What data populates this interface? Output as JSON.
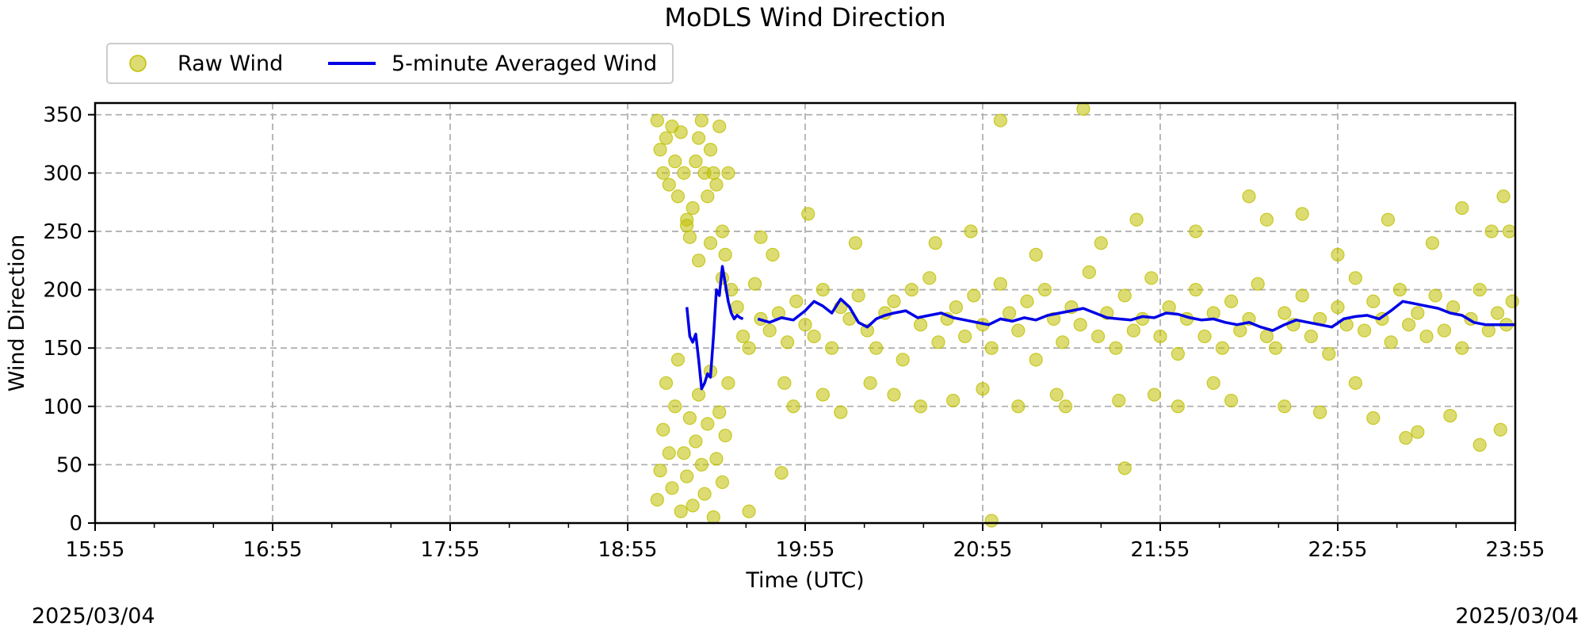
{
  "chart_data": {
    "type": "scatter",
    "title": "MoDLS Wind Direction",
    "xlabel": "Time (UTC)",
    "ylabel": "Wind Direction",
    "x_ticks": [
      "15:55",
      "16:55",
      "17:55",
      "18:55",
      "19:55",
      "20:55",
      "21:55",
      "22:55",
      "23:55"
    ],
    "x_range_minutes": [
      0,
      480
    ],
    "ylim": [
      0,
      360
    ],
    "y_ticks": [
      0,
      50,
      100,
      150,
      200,
      250,
      300,
      350
    ],
    "grid": true,
    "legend_position": "top-left",
    "date_left": "2025/03/04",
    "date_right": "2025/03/04",
    "series": [
      {
        "name": "Raw Wind",
        "kind": "scatter",
        "color": "#bfbf00",
        "points": [
          [
            190,
            345
          ],
          [
            191,
            320
          ],
          [
            192,
            300
          ],
          [
            193,
            330
          ],
          [
            194,
            290
          ],
          [
            195,
            340
          ],
          [
            196,
            310
          ],
          [
            197,
            280
          ],
          [
            198,
            335
          ],
          [
            199,
            300
          ],
          [
            200,
            260
          ],
          [
            201,
            245
          ],
          [
            202,
            270
          ],
          [
            203,
            310
          ],
          [
            204,
            330
          ],
          [
            205,
            345
          ],
          [
            206,
            300
          ],
          [
            207,
            280
          ],
          [
            208,
            320
          ],
          [
            209,
            300
          ],
          [
            210,
            290
          ],
          [
            211,
            340
          ],
          [
            212,
            250
          ],
          [
            213,
            230
          ],
          [
            214,
            300
          ],
          [
            190,
            20
          ],
          [
            191,
            45
          ],
          [
            192,
            80
          ],
          [
            193,
            120
          ],
          [
            194,
            60
          ],
          [
            195,
            30
          ],
          [
            196,
            100
          ],
          [
            197,
            140
          ],
          [
            198,
            10
          ],
          [
            199,
            60
          ],
          [
            200,
            40
          ],
          [
            201,
            90
          ],
          [
            202,
            15
          ],
          [
            203,
            70
          ],
          [
            204,
            110
          ],
          [
            205,
            50
          ],
          [
            206,
            25
          ],
          [
            207,
            85
          ],
          [
            208,
            130
          ],
          [
            209,
            5
          ],
          [
            210,
            55
          ],
          [
            211,
            95
          ],
          [
            212,
            35
          ],
          [
            213,
            75
          ],
          [
            214,
            120
          ],
          [
            200,
            255
          ],
          [
            204,
            225
          ],
          [
            208,
            240
          ],
          [
            212,
            210
          ],
          [
            215,
            200
          ],
          [
            217,
            185
          ],
          [
            219,
            160
          ],
          [
            221,
            150
          ],
          [
            223,
            205
          ],
          [
            225,
            175
          ],
          [
            228,
            165
          ],
          [
            231,
            180
          ],
          [
            234,
            155
          ],
          [
            237,
            190
          ],
          [
            240,
            170
          ],
          [
            243,
            160
          ],
          [
            246,
            200
          ],
          [
            249,
            150
          ],
          [
            252,
            185
          ],
          [
            255,
            175
          ],
          [
            258,
            195
          ],
          [
            261,
            165
          ],
          [
            264,
            150
          ],
          [
            267,
            180
          ],
          [
            270,
            190
          ],
          [
            273,
            140
          ],
          [
            276,
            200
          ],
          [
            279,
            170
          ],
          [
            282,
            210
          ],
          [
            285,
            155
          ],
          [
            288,
            175
          ],
          [
            291,
            185
          ],
          [
            294,
            160
          ],
          [
            297,
            195
          ],
          [
            300,
            170
          ],
          [
            303,
            150
          ],
          [
            306,
            205
          ],
          [
            309,
            180
          ],
          [
            312,
            165
          ],
          [
            315,
            190
          ],
          [
            318,
            140
          ],
          [
            321,
            200
          ],
          [
            324,
            175
          ],
          [
            327,
            155
          ],
          [
            330,
            185
          ],
          [
            333,
            170
          ],
          [
            336,
            215
          ],
          [
            339,
            160
          ],
          [
            342,
            180
          ],
          [
            345,
            150
          ],
          [
            348,
            195
          ],
          [
            351,
            165
          ],
          [
            354,
            175
          ],
          [
            357,
            210
          ],
          [
            360,
            160
          ],
          [
            363,
            185
          ],
          [
            366,
            145
          ],
          [
            369,
            175
          ],
          [
            372,
            200
          ],
          [
            375,
            160
          ],
          [
            378,
            180
          ],
          [
            381,
            150
          ],
          [
            384,
            190
          ],
          [
            387,
            165
          ],
          [
            390,
            175
          ],
          [
            393,
            205
          ],
          [
            396,
            160
          ],
          [
            399,
            150
          ],
          [
            402,
            180
          ],
          [
            405,
            170
          ],
          [
            408,
            195
          ],
          [
            411,
            160
          ],
          [
            414,
            175
          ],
          [
            417,
            145
          ],
          [
            420,
            185
          ],
          [
            423,
            170
          ],
          [
            426,
            210
          ],
          [
            429,
            165
          ],
          [
            432,
            190
          ],
          [
            435,
            175
          ],
          [
            438,
            155
          ],
          [
            441,
            200
          ],
          [
            444,
            170
          ],
          [
            447,
            180
          ],
          [
            450,
            160
          ],
          [
            453,
            195
          ],
          [
            456,
            165
          ],
          [
            459,
            185
          ],
          [
            462,
            150
          ],
          [
            465,
            175
          ],
          [
            468,
            200
          ],
          [
            471,
            165
          ],
          [
            474,
            180
          ],
          [
            477,
            170
          ],
          [
            479,
            190
          ],
          [
            225,
            245
          ],
          [
            229,
            230
          ],
          [
            233,
            120
          ],
          [
            236,
            100
          ],
          [
            241,
            265
          ],
          [
            246,
            110
          ],
          [
            252,
            95
          ],
          [
            257,
            240
          ],
          [
            262,
            120
          ],
          [
            270,
            110
          ],
          [
            279,
            100
          ],
          [
            284,
            240
          ],
          [
            290,
            105
          ],
          [
            296,
            250
          ],
          [
            300,
            115
          ],
          [
            303,
            2
          ],
          [
            306,
            345
          ],
          [
            312,
            100
          ],
          [
            318,
            230
          ],
          [
            325,
            110
          ],
          [
            328,
            100
          ],
          [
            334,
            355
          ],
          [
            340,
            240
          ],
          [
            346,
            105
          ],
          [
            348,
            47
          ],
          [
            352,
            260
          ],
          [
            358,
            110
          ],
          [
            366,
            100
          ],
          [
            372,
            250
          ],
          [
            378,
            120
          ],
          [
            384,
            105
          ],
          [
            390,
            280
          ],
          [
            396,
            260
          ],
          [
            402,
            100
          ],
          [
            408,
            265
          ],
          [
            414,
            95
          ],
          [
            420,
            230
          ],
          [
            426,
            120
          ],
          [
            432,
            90
          ],
          [
            437,
            260
          ],
          [
            443,
            73
          ],
          [
            447,
            78
          ],
          [
            452,
            240
          ],
          [
            458,
            92
          ],
          [
            462,
            270
          ],
          [
            468,
            67
          ],
          [
            472,
            250
          ],
          [
            475,
            80
          ],
          [
            476,
            280
          ],
          [
            478,
            250
          ],
          [
            221,
            10
          ],
          [
            232,
            43
          ]
        ]
      },
      {
        "name": "5-minute Averaged Wind",
        "kind": "line",
        "color": "#0000e6",
        "x": [
          200,
          201,
          202,
          203,
          204,
          205,
          206,
          207,
          208,
          209,
          210,
          211,
          212,
          213,
          214,
          215,
          216,
          217,
          218,
          219
        ],
        "y": [
          185,
          160,
          155,
          162,
          140,
          115,
          120,
          128,
          125,
          160,
          200,
          195,
          220,
          205,
          190,
          180,
          175,
          178,
          176,
          175
        ],
        "x2": [
          224,
          228,
          232,
          236,
          240,
          243,
          246,
          249,
          252,
          255,
          258,
          261,
          264,
          267,
          270,
          274,
          278,
          282,
          286,
          290,
          294,
          298,
          302,
          306,
          310,
          314,
          318,
          322,
          326,
          330,
          334,
          338,
          342,
          346,
          350,
          354,
          358,
          362,
          366,
          370,
          374,
          378,
          382,
          386,
          390,
          394,
          398,
          402,
          406,
          410,
          414,
          418,
          422,
          426,
          430,
          434,
          438,
          442,
          446,
          450,
          454,
          458,
          462,
          466,
          470,
          474,
          478,
          480
        ],
        "y2": [
          175,
          172,
          176,
          174,
          182,
          190,
          186,
          180,
          192,
          185,
          172,
          168,
          175,
          178,
          180,
          182,
          176,
          178,
          180,
          176,
          174,
          172,
          170,
          175,
          173,
          176,
          174,
          178,
          180,
          182,
          184,
          180,
          176,
          175,
          174,
          177,
          176,
          180,
          179,
          176,
          174,
          175,
          172,
          170,
          172,
          168,
          165,
          170,
          174,
          172,
          170,
          168,
          175,
          177,
          178,
          175,
          182,
          190,
          188,
          186,
          184,
          180,
          178,
          172,
          170,
          170,
          170,
          170
        ]
      }
    ]
  }
}
